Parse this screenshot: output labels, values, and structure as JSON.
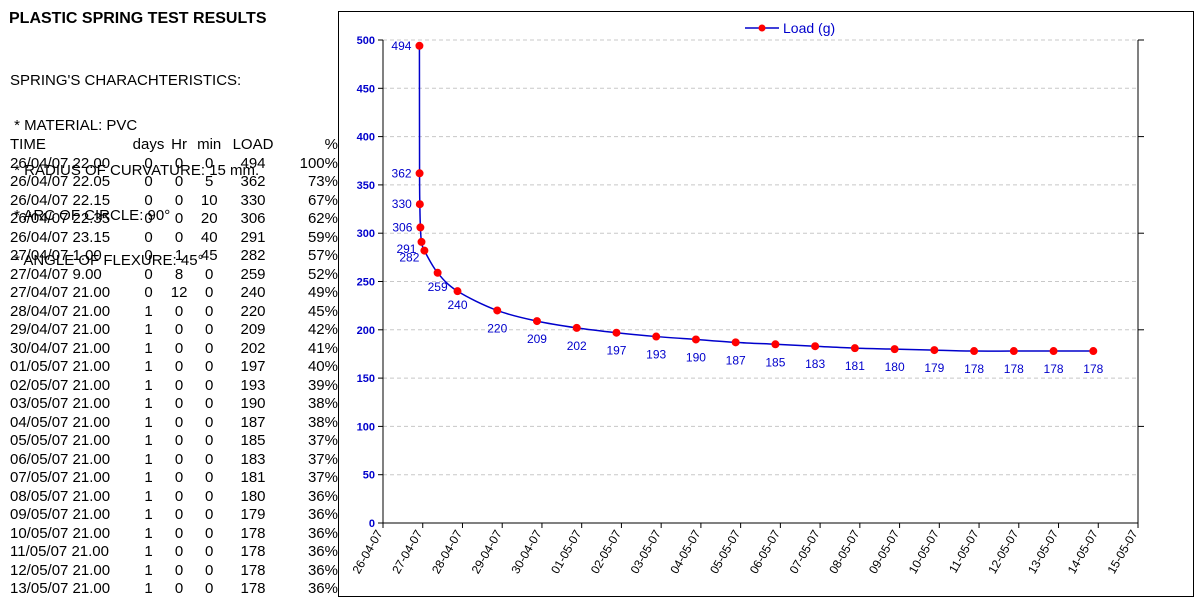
{
  "title": "PLASTIC SPRING TEST RESULTS",
  "characteristics": {
    "heading": "SPRING'S CHARACHTERISTICS:",
    "lines": [
      " * MATERIAL: PVC",
      " * RADIUS OF CURVATURE: 15 mm.",
      " * ARC OF CIRCLE: 90°",
      " * ANGLE OF FLEXURE: 45°"
    ]
  },
  "table": {
    "headers": [
      "TIME",
      "days",
      "Hr",
      "min",
      "LOAD",
      "%"
    ],
    "rows": [
      [
        "26/04/07 22.00",
        "0",
        "0",
        "0",
        "494",
        "100%"
      ],
      [
        "26/04/07 22.05",
        "0",
        "0",
        "5",
        "362",
        "73%"
      ],
      [
        "26/04/07 22.15",
        "0",
        "0",
        "10",
        "330",
        "67%"
      ],
      [
        "26/04/07 22.35",
        "0",
        "0",
        "20",
        "306",
        "62%"
      ],
      [
        "26/04/07 23.15",
        "0",
        "0",
        "40",
        "291",
        "59%"
      ],
      [
        "27/04/07 1.00",
        "0",
        "1",
        "45",
        "282",
        "57%"
      ],
      [
        "27/04/07 9.00",
        "0",
        "8",
        "0",
        "259",
        "52%"
      ],
      [
        "27/04/07 21.00",
        "0",
        "12",
        "0",
        "240",
        "49%"
      ],
      [
        "28/04/07 21.00",
        "1",
        "0",
        "0",
        "220",
        "45%"
      ],
      [
        "29/04/07 21.00",
        "1",
        "0",
        "0",
        "209",
        "42%"
      ],
      [
        "30/04/07 21.00",
        "1",
        "0",
        "0",
        "202",
        "41%"
      ],
      [
        "01/05/07 21.00",
        "1",
        "0",
        "0",
        "197",
        "40%"
      ],
      [
        "02/05/07 21.00",
        "1",
        "0",
        "0",
        "193",
        "39%"
      ],
      [
        "03/05/07 21.00",
        "1",
        "0",
        "0",
        "190",
        "38%"
      ],
      [
        "04/05/07 21.00",
        "1",
        "0",
        "0",
        "187",
        "38%"
      ],
      [
        "05/05/07 21.00",
        "1",
        "0",
        "0",
        "185",
        "37%"
      ],
      [
        "06/05/07 21.00",
        "1",
        "0",
        "0",
        "183",
        "37%"
      ],
      [
        "07/05/07 21.00",
        "1",
        "0",
        "0",
        "181",
        "37%"
      ],
      [
        "08/05/07 21.00",
        "1",
        "0",
        "0",
        "180",
        "36%"
      ],
      [
        "09/05/07 21.00",
        "1",
        "0",
        "0",
        "179",
        "36%"
      ],
      [
        "10/05/07 21.00",
        "1",
        "0",
        "0",
        "178",
        "36%"
      ],
      [
        "11/05/07 21.00",
        "1",
        "0",
        "0",
        "178",
        "36%"
      ],
      [
        "12/05/07 21.00",
        "1",
        "0",
        "0",
        "178",
        "36%"
      ],
      [
        "13/05/07 21.00",
        "1",
        "0",
        "0",
        "178",
        "36%"
      ]
    ]
  },
  "chart_data": {
    "type": "line",
    "title": "",
    "xlabel": "",
    "ylabel": "",
    "legend": {
      "label": "Load (g)",
      "position": "top-center"
    },
    "ylim": [
      0,
      500
    ],
    "yticks": [
      0,
      50,
      100,
      150,
      200,
      250,
      300,
      350,
      400,
      450,
      500
    ],
    "xlim": [
      "2007-04-26",
      "2007-05-15"
    ],
    "x_tick_labels": [
      "26-04-07",
      "27-04-07",
      "28-04-07",
      "29-04-07",
      "30-04-07",
      "01-05-07",
      "02-05-07",
      "03-05-07",
      "04-05-07",
      "05-05-07",
      "06-05-07",
      "07-05-07",
      "08-05-07",
      "09-05-07",
      "10-05-07",
      "11-05-07",
      "12-05-07",
      "13-05-07",
      "14-05-07",
      "15-05-07"
    ],
    "grid": {
      "horizontal": true,
      "vertical": false
    },
    "series": [
      {
        "name": "Load (g)",
        "color": "#0000cc",
        "marker_color": "#ff0000",
        "x": [
          "2007-04-26 22:00",
          "2007-04-26 22:05",
          "2007-04-26 22:15",
          "2007-04-26 22:35",
          "2007-04-26 23:15",
          "2007-04-27 01:00",
          "2007-04-27 09:00",
          "2007-04-27 21:00",
          "2007-04-28 21:00",
          "2007-04-29 21:00",
          "2007-04-30 21:00",
          "2007-05-01 21:00",
          "2007-05-02 21:00",
          "2007-05-03 21:00",
          "2007-05-04 21:00",
          "2007-05-05 21:00",
          "2007-05-06 21:00",
          "2007-05-07 21:00",
          "2007-05-08 21:00",
          "2007-05-09 21:00",
          "2007-05-10 21:00",
          "2007-05-11 21:00",
          "2007-05-12 21:00",
          "2007-05-13 21:00"
        ],
        "values": [
          494,
          362,
          330,
          306,
          291,
          282,
          259,
          240,
          220,
          209,
          202,
          197,
          193,
          190,
          187,
          185,
          183,
          181,
          180,
          179,
          178,
          178,
          178,
          178
        ]
      }
    ]
  }
}
